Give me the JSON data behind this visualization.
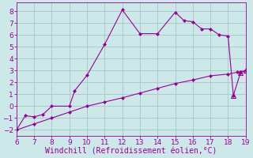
{
  "xlabel": "Windchill (Refroidissement éolien,°C)",
  "bg_color": "#cce8e8",
  "grid_color": "#aacccc",
  "line_color": "#990099",
  "xlim": [
    6,
    19
  ],
  "ylim": [
    -2.5,
    8.7
  ],
  "xticks": [
    6,
    7,
    8,
    9,
    10,
    11,
    12,
    13,
    14,
    15,
    16,
    17,
    18,
    19
  ],
  "yticks": [
    -2,
    -1,
    0,
    1,
    2,
    3,
    4,
    5,
    6,
    7,
    8
  ],
  "series1_x": [
    6,
    6.5,
    7,
    7.5,
    8,
    9,
    9.3,
    10,
    11,
    12,
    13,
    14,
    15,
    15.5,
    16,
    16.5,
    17,
    17.5,
    18,
    18.3,
    18.7,
    19
  ],
  "series1_y": [
    -2.0,
    -0.8,
    -0.9,
    -0.7,
    0.0,
    0.0,
    1.3,
    2.6,
    5.2,
    8.1,
    6.1,
    6.1,
    7.9,
    7.2,
    7.1,
    6.5,
    6.5,
    6.0,
    5.9,
    0.9,
    2.8,
    3.0
  ],
  "series2_x": [
    6,
    7,
    8,
    9,
    10,
    11,
    12,
    13,
    14,
    15,
    16,
    17,
    18,
    18.5,
    19
  ],
  "series2_y": [
    -2.0,
    -1.5,
    -1.0,
    -0.5,
    0.0,
    0.35,
    0.7,
    1.1,
    1.5,
    1.9,
    2.2,
    2.55,
    2.7,
    2.85,
    3.0
  ],
  "xlabel_fontsize": 7,
  "tick_fontsize": 6.5
}
